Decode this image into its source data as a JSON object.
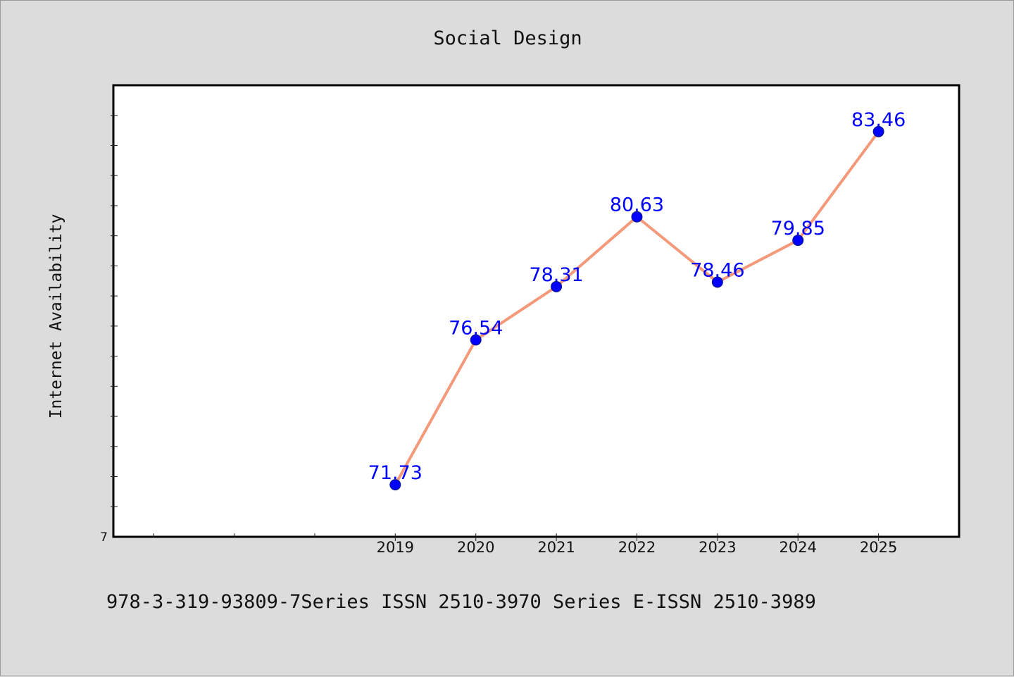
{
  "chart_data": {
    "type": "line",
    "title": "Social Design",
    "ylabel": "Internet Availability",
    "xlabel": "",
    "categories": [
      "2019",
      "2020",
      "2021",
      "2022",
      "2023",
      "2024",
      "2025"
    ],
    "series": [
      {
        "values": [
          71.73,
          76.54,
          78.31,
          80.63,
          78.46,
          79.85,
          83.46
        ],
        "data_labels": [
          "71.73",
          "76.54",
          "78.31",
          "80.63",
          "78.46",
          "79.85",
          "83.46"
        ]
      }
    ],
    "xlim": [
      2015.5,
      2026.0
    ],
    "ylim": [
      70.0,
      85.0
    ],
    "y_tick_labels": [
      "7"
    ],
    "x_minor_ticks": [
      2016,
      2017,
      2018
    ],
    "grid": false,
    "colors": {
      "line": "#f4997a",
      "marker": "#0000ff",
      "data_label": "#0000ff",
      "plot_background": "#ffffff",
      "page_background": "#dcdcdc"
    }
  },
  "footer_text": "978-3-319-93809-7Series ISSN 2510-3970 Series E-ISSN 2510-3989"
}
